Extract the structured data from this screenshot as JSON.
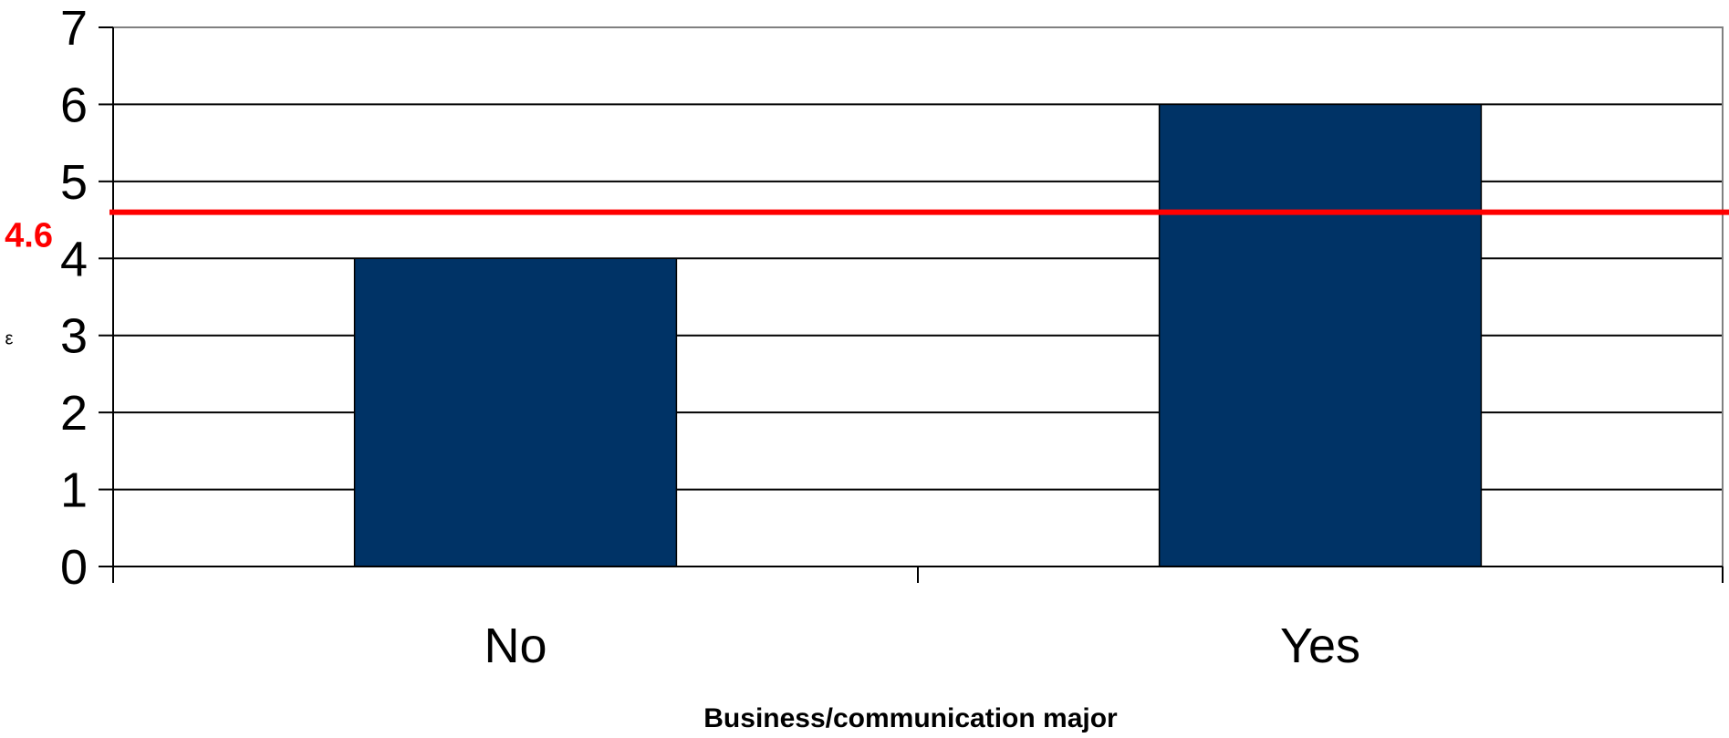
{
  "chart_data": {
    "type": "bar",
    "categories": [
      "No",
      "Yes"
    ],
    "values": [
      4,
      6
    ],
    "title": "",
    "xlabel": "Business/communication major",
    "ylabel": "",
    "ylabel_fragment": "ε",
    "ylim": [
      0,
      7
    ],
    "yticks": [
      0,
      1,
      2,
      3,
      4,
      5,
      6,
      7
    ],
    "grid": true,
    "reference_line": {
      "value": 4.6,
      "label": "4.6",
      "color": "#ff0000"
    },
    "bar_color": "#003366"
  }
}
